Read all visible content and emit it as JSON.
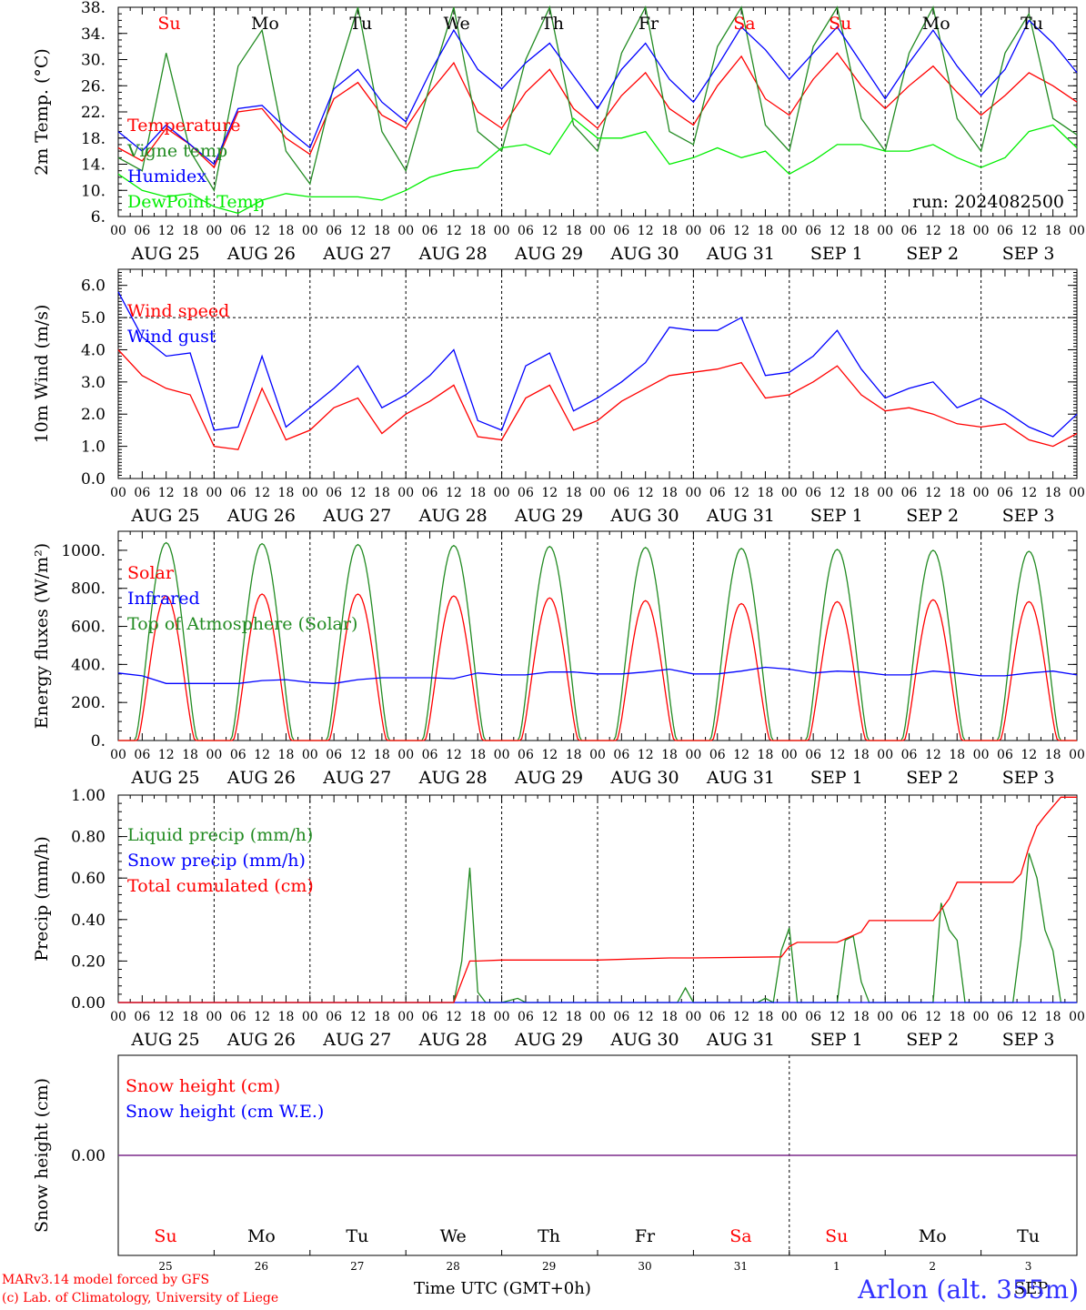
{
  "chart_data": [
    {
      "type": "line",
      "panel": "temperature",
      "ylabel": "2m Temp. (°C)",
      "yticks": [
        "6.",
        "10.",
        "14.",
        "18.",
        "22.",
        "26.",
        "30.",
        "34.",
        "38."
      ],
      "ylim": [
        6,
        38
      ],
      "run_label": "run: 2024082500",
      "weekdays": [
        "Su",
        "Mo",
        "Tu",
        "We",
        "Th",
        "Fr",
        "Sa",
        "Su",
        "Mo",
        "Tu"
      ],
      "weekday_colors": [
        "#ff0000",
        "#000000",
        "#000000",
        "#000000",
        "#000000",
        "#000000",
        "#ff0000",
        "#ff0000",
        "#000000",
        "#000000"
      ],
      "x_unit": "hours since 2024-08-25 00 UTC",
      "series": [
        {
          "name": "Temperature",
          "color": "#ff0000",
          "x": [
            0,
            6,
            12,
            18,
            24,
            30,
            36,
            42,
            48,
            54,
            60,
            66,
            72,
            78,
            84,
            90,
            96,
            102,
            108,
            114,
            120,
            126,
            132,
            138,
            144,
            150,
            156,
            162,
            168,
            174,
            180,
            186,
            192,
            198,
            204,
            210,
            216,
            222,
            228,
            234,
            240
          ],
          "y": [
            16.5,
            14.5,
            19.5,
            17,
            13.5,
            22,
            22.5,
            18,
            15.5,
            24,
            26.5,
            21.5,
            19.5,
            25,
            29.5,
            22,
            19.5,
            25,
            28.5,
            22.5,
            19.5,
            24.5,
            28,
            22.5,
            20,
            26,
            30.5,
            24,
            21.5,
            27,
            31,
            26,
            22.5,
            26,
            29,
            25,
            21.5,
            24.5,
            28,
            26,
            23.5
          ]
        },
        {
          "name": "Vigne temp",
          "color": "#228b22",
          "x": [
            0,
            6,
            12,
            18,
            24,
            30,
            36,
            42,
            48,
            54,
            60,
            66,
            72,
            78,
            84,
            90,
            96,
            102,
            108,
            114,
            120,
            126,
            132,
            138,
            144,
            150,
            156,
            162,
            168,
            174,
            180,
            186,
            192,
            198,
            204,
            210,
            216,
            222,
            228,
            234,
            240
          ],
          "y": [
            15,
            13,
            31,
            16,
            10,
            29,
            34.5,
            16,
            11,
            26,
            38,
            19,
            13,
            26,
            38,
            19,
            16,
            30,
            38,
            20,
            16,
            31,
            38,
            19,
            17,
            32,
            38,
            20,
            16,
            32,
            38,
            21,
            16,
            31,
            38,
            21,
            16,
            31,
            37,
            21,
            18.5
          ]
        },
        {
          "name": "Humidex",
          "color": "#0000ff",
          "x": [
            0,
            6,
            12,
            18,
            24,
            30,
            36,
            42,
            48,
            54,
            60,
            66,
            72,
            78,
            84,
            90,
            96,
            102,
            108,
            114,
            120,
            126,
            132,
            138,
            144,
            150,
            156,
            162,
            168,
            174,
            180,
            186,
            192,
            198,
            204,
            210,
            216,
            222,
            228,
            234,
            240
          ],
          "y": [
            19,
            16,
            20,
            17,
            14,
            22.5,
            23,
            19.5,
            16.5,
            25.5,
            28.5,
            23.5,
            20.5,
            28,
            34.5,
            28.5,
            25.5,
            29.5,
            32.5,
            27.5,
            22.5,
            28.5,
            32.5,
            27,
            23.5,
            29,
            35,
            31.5,
            27,
            31,
            35,
            29.5,
            24,
            29.5,
            34.5,
            29,
            24.5,
            28.5,
            36,
            32.5,
            28
          ]
        },
        {
          "name": "DewPoint Temp",
          "color": "#00ee00",
          "x": [
            0,
            6,
            12,
            18,
            24,
            30,
            36,
            42,
            48,
            54,
            60,
            66,
            72,
            78,
            84,
            90,
            96,
            102,
            108,
            114,
            120,
            126,
            132,
            138,
            144,
            150,
            156,
            162,
            168,
            174,
            180,
            186,
            192,
            198,
            204,
            210,
            216,
            222,
            228,
            234,
            240
          ],
          "y": [
            12.5,
            10,
            9,
            9.5,
            7.5,
            6.5,
            8.5,
            9.5,
            9,
            9,
            9,
            8.5,
            10,
            12,
            13,
            13.5,
            16.5,
            17,
            15.5,
            21,
            18,
            18,
            19,
            14,
            15,
            16.5,
            15,
            16,
            12.5,
            14.5,
            17,
            17,
            16,
            16,
            17,
            15,
            13.5,
            15,
            19,
            20,
            16.5
          ]
        }
      ]
    },
    {
      "type": "line",
      "panel": "wind",
      "ylabel": "10m Wind (m/s)",
      "yticks": [
        "0.0",
        "1.0",
        "2.0",
        "3.0",
        "4.0",
        "5.0",
        "6.0"
      ],
      "ylim": [
        0,
        6.5
      ],
      "reference_line": 5.0,
      "x_unit": "hours since 2024-08-25 00 UTC",
      "series": [
        {
          "name": "Wind speed",
          "color": "#ff0000",
          "x": [
            0,
            6,
            12,
            18,
            24,
            30,
            36,
            42,
            48,
            54,
            60,
            66,
            72,
            78,
            84,
            90,
            96,
            102,
            108,
            114,
            120,
            126,
            132,
            138,
            144,
            150,
            156,
            162,
            168,
            174,
            180,
            186,
            192,
            198,
            204,
            210,
            216,
            222,
            228,
            234,
            240
          ],
          "y": [
            4.0,
            3.2,
            2.8,
            2.6,
            1.0,
            0.9,
            2.8,
            1.2,
            1.5,
            2.2,
            2.5,
            1.4,
            2.0,
            2.4,
            2.9,
            1.3,
            1.2,
            2.5,
            2.9,
            1.5,
            1.8,
            2.4,
            2.8,
            3.2,
            3.3,
            3.4,
            3.6,
            2.5,
            2.6,
            3.0,
            3.5,
            2.6,
            2.1,
            2.2,
            2.0,
            1.7,
            1.6,
            1.7,
            1.2,
            1.0,
            1.4
          ]
        },
        {
          "name": "Wind gust",
          "color": "#0000ff",
          "x": [
            0,
            6,
            12,
            18,
            24,
            30,
            36,
            42,
            48,
            54,
            60,
            66,
            72,
            78,
            84,
            90,
            96,
            102,
            108,
            114,
            120,
            126,
            132,
            138,
            144,
            150,
            156,
            162,
            168,
            174,
            180,
            186,
            192,
            198,
            204,
            210,
            216,
            222,
            228,
            234,
            240
          ],
          "y": [
            5.8,
            4.4,
            3.8,
            3.9,
            1.5,
            1.6,
            3.8,
            1.6,
            2.2,
            2.8,
            3.5,
            2.2,
            2.6,
            3.2,
            4.0,
            1.8,
            1.5,
            3.5,
            3.9,
            2.1,
            2.5,
            3.0,
            3.6,
            4.7,
            4.6,
            4.6,
            5.0,
            3.2,
            3.3,
            3.8,
            4.6,
            3.4,
            2.5,
            2.8,
            3.0,
            2.2,
            2.5,
            2.1,
            1.6,
            1.3,
            2.0
          ]
        }
      ]
    },
    {
      "type": "line",
      "panel": "energy",
      "ylabel": "Energy fluxes (W/m²)",
      "yticks": [
        "0.",
        "200.",
        "400.",
        "600.",
        "800.",
        "1000."
      ],
      "ylim": [
        0,
        1100
      ],
      "x_unit": "hours since 2024-08-25 00 UTC",
      "daily_peaks": {
        "Solar": [
          760,
          770,
          770,
          760,
          750,
          735,
          720,
          730,
          740,
          730
        ],
        "Top of Atmosphere (Solar)": [
          1040,
          1035,
          1030,
          1025,
          1020,
          1015,
          1010,
          1005,
          1000,
          995
        ]
      },
      "series": [
        {
          "name": "Solar",
          "color": "#ff0000"
        },
        {
          "name": "Infrared",
          "color": "#0000ff",
          "x": [
            0,
            6,
            12,
            18,
            24,
            30,
            36,
            42,
            48,
            54,
            60,
            66,
            72,
            78,
            84,
            90,
            96,
            102,
            108,
            114,
            120,
            126,
            132,
            138,
            144,
            150,
            156,
            162,
            168,
            174,
            180,
            186,
            192,
            198,
            204,
            210,
            216,
            222,
            228,
            234,
            240
          ],
          "y": [
            355,
            340,
            300,
            300,
            300,
            300,
            315,
            320,
            305,
            300,
            320,
            330,
            330,
            330,
            325,
            355,
            345,
            345,
            360,
            360,
            350,
            350,
            360,
            375,
            350,
            350,
            365,
            385,
            375,
            355,
            365,
            360,
            345,
            345,
            365,
            355,
            340,
            340,
            355,
            365,
            345
          ]
        },
        {
          "name": "Top of Atmosphere (Solar)",
          "color": "#228b22"
        }
      ]
    },
    {
      "type": "line",
      "panel": "precip",
      "ylabel": "Precip (mm/h)",
      "yticks": [
        "0.00",
        "0.20",
        "0.40",
        "0.60",
        "0.80",
        "1.00"
      ],
      "ylim": [
        0,
        1.0
      ],
      "x_unit": "hours since 2024-08-25 00 UTC",
      "series": [
        {
          "name": "Liquid precip (mm/h)",
          "color": "#228b22",
          "x": [
            0,
            84,
            86,
            88,
            90,
            92,
            96,
            100,
            102,
            104,
            140,
            142,
            144,
            146,
            160,
            162,
            164,
            166,
            168,
            170,
            172,
            180,
            182,
            184,
            186,
            188,
            190,
            204,
            206,
            208,
            210,
            212,
            224,
            226,
            228,
            230,
            232,
            234,
            236,
            240
          ],
          "y": [
            0,
            0,
            0.2,
            0.65,
            0.05,
            0,
            0,
            0.02,
            0,
            0,
            0,
            0.07,
            0,
            0,
            0,
            0.02,
            0,
            0.25,
            0.36,
            0,
            0,
            0,
            0.3,
            0.32,
            0.1,
            0,
            0,
            0,
            0.48,
            0.35,
            0.3,
            0,
            0,
            0.3,
            0.72,
            0.6,
            0.35,
            0.25,
            0,
            0
          ]
        },
        {
          "name": "Snow precip (mm/h)",
          "color": "#0000ff",
          "x": [
            0,
            240
          ],
          "y": [
            0,
            0
          ]
        },
        {
          "name": "Total cumulated (cm)",
          "color": "#ff0000",
          "x": [
            0,
            84,
            86,
            88,
            90,
            96,
            120,
            138,
            144,
            166,
            168,
            170,
            180,
            186,
            188,
            190,
            204,
            208,
            210,
            212,
            224,
            226,
            228,
            230,
            232,
            236,
            240
          ],
          "y": [
            0,
            0,
            0.1,
            0.2,
            0.2,
            0.205,
            0.205,
            0.215,
            0.215,
            0.22,
            0.27,
            0.29,
            0.29,
            0.34,
            0.395,
            0.395,
            0.395,
            0.5,
            0.58,
            0.58,
            0.58,
            0.62,
            0.75,
            0.85,
            0.9,
            0.99,
            0.99
          ]
        }
      ]
    },
    {
      "type": "line",
      "panel": "snow",
      "ylabel": "Snow height (cm)",
      "yticks": [
        "0.00"
      ],
      "ylim": [
        -1,
        1
      ],
      "x_unit": "hours since 2024-08-25 00 UTC",
      "weekdays": [
        "Su",
        "Mo",
        "Tu",
        "We",
        "Th",
        "Fr",
        "Sa",
        "Su",
        "Mo",
        "Tu"
      ],
      "weekday_colors": [
        "#ff0000",
        "#000000",
        "#000000",
        "#000000",
        "#000000",
        "#000000",
        "#ff0000",
        "#ff0000",
        "#000000",
        "#000000"
      ],
      "day_numbers": [
        "25",
        "26",
        "27",
        "28",
        "29",
        "30",
        "31",
        "1",
        "2",
        "3"
      ],
      "month_label": "SEP",
      "series": [
        {
          "name": "Snow height (cm)",
          "color": "#ff0000",
          "x": [
            0,
            240
          ],
          "y": [
            0,
            0
          ]
        },
        {
          "name": "Snow height (cm W.E.)",
          "color": "#0000ff",
          "x": [
            0,
            240
          ],
          "y": [
            0,
            0
          ]
        }
      ]
    }
  ],
  "x_axis": {
    "hour_ticks": [
      "00",
      "06",
      "12",
      "18"
    ],
    "final_tick": "00",
    "dates": [
      "AUG 25",
      "AUG 26",
      "AUG 27",
      "AUG 28",
      "AUG 29",
      "AUG 30",
      "AUG 31",
      "SEP  1",
      "SEP  2",
      "SEP  3"
    ],
    "title": "Time  UTC (GMT+0h)"
  },
  "footer": {
    "credit_line1": "MARv3.14 model forced by GFS",
    "credit_line2": "(c) Lab. of Climatology, University of Liege",
    "station": "Arlon (alt. 355m)"
  }
}
